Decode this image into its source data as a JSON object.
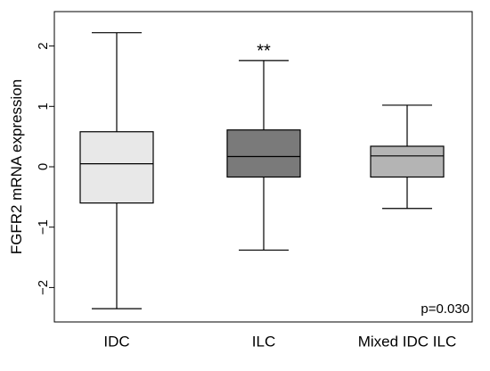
{
  "chart_data": {
    "type": "box",
    "ylabel": "FGFR2 mRNA expression",
    "xlabel": "",
    "ylim": [
      -2.45,
      2.5
    ],
    "yticks": [
      -2,
      -1,
      0,
      1,
      2
    ],
    "ytick_labels": [
      "−2",
      "−1",
      "0",
      "1",
      "2"
    ],
    "categories": [
      "IDC",
      "ILC",
      "Mixed IDC ILC"
    ],
    "boxes": [
      {
        "category": "IDC",
        "whisker_low": -2.35,
        "q1": -0.6,
        "median": 0.05,
        "q3": 0.58,
        "whisker_high": 2.22,
        "fill": "#e8e8e8"
      },
      {
        "category": "ILC",
        "whisker_low": -1.38,
        "q1": -0.17,
        "median": 0.17,
        "q3": 0.61,
        "whisker_high": 1.76,
        "fill": "#7a7a7a"
      },
      {
        "category": "Mixed IDC ILC",
        "whisker_low": -0.69,
        "q1": -0.17,
        "median": 0.18,
        "q3": 0.34,
        "whisker_high": 1.02,
        "fill": "#b4b4b4"
      }
    ],
    "annotations": [
      {
        "text": "**",
        "category": "ILC",
        "y": 2.0
      },
      {
        "text": "p=0.030",
        "placement": "bottom-right"
      }
    ],
    "grid": false,
    "legend": "none"
  }
}
